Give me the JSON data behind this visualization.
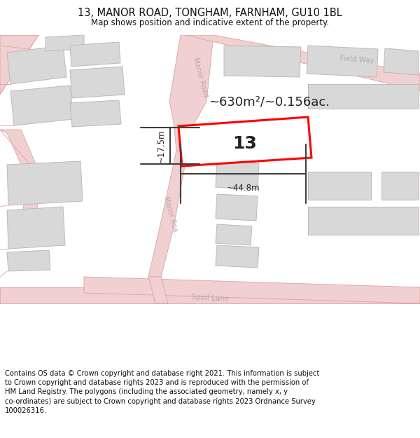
{
  "title": "13, MANOR ROAD, TONGHAM, FARNHAM, GU10 1BL",
  "subtitle": "Map shows position and indicative extent of the property.",
  "footer": "Contains OS data © Crown copyright and database right 2021. This information is subject\nto Crown copyright and database rights 2023 and is reproduced with the permission of\nHM Land Registry. The polygons (including the associated geometry, namely x, y\nco-ordinates) are subject to Crown copyright and database rights 2023 Ordnance Survey\n100026316.",
  "area_text": "~630m²/~0.156ac.",
  "property_number": "13",
  "width_label": "~44.8m",
  "height_label": "~17.5m",
  "map_bg": "#ffffff",
  "road_fill": "#f0d0d0",
  "road_edge": "#e0a0a0",
  "building_fill": "#d8d8d8",
  "building_edge": "#c0b8b8",
  "prop_fill": "#ffffff",
  "prop_edge": "#ff0000",
  "road_label_color": "#b8a8a8",
  "dim_color": "#404040",
  "text_color": "#222222",
  "title_fontsize": 10.5,
  "subtitle_fontsize": 8.5,
  "footer_fontsize": 7.2,
  "area_fontsize": 13,
  "num_fontsize": 18,
  "dim_label_fontsize": 8.5
}
